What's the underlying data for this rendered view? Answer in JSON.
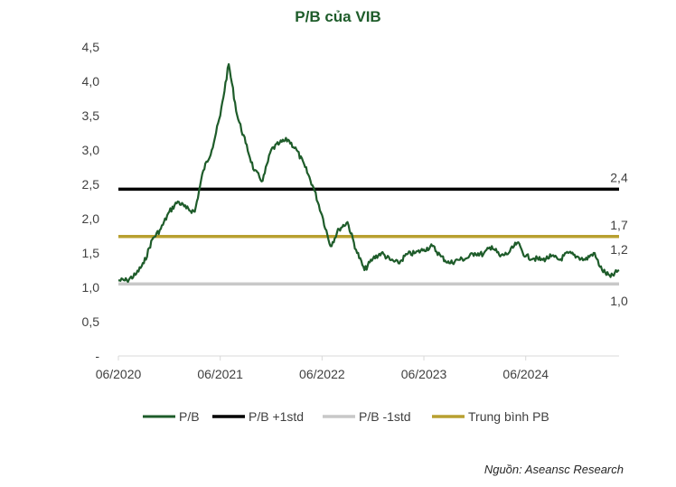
{
  "source": "Nguồn: Aseansc Research",
  "chart_data": {
    "type": "line",
    "title": "P/B của VIB",
    "xlabel": "",
    "ylabel": "",
    "x_ticks": [
      "06/2020",
      "06/2021",
      "06/2022",
      "06/2023",
      "06/2024"
    ],
    "y_ticks": [
      "-",
      "0,5",
      "1,0",
      "1,5",
      "2,0",
      "2,5",
      "3,0",
      "3,5",
      "4,0",
      "4,5"
    ],
    "ylim": [
      0,
      4.5
    ],
    "x_range": [
      "2020-06",
      "2025-05"
    ],
    "grid": false,
    "legend_position": "bottom",
    "colors": {
      "pb": "#1e5c2a",
      "plus1std": "#000000",
      "minus1std": "#c8c8c8",
      "mean": "#b8a030",
      "title": "#1e5c2a"
    },
    "series": [
      {
        "name": "P/B",
        "key": "pb",
        "x": [
          "2020-06",
          "2020-07",
          "2020-08",
          "2020-09",
          "2020-10",
          "2020-11",
          "2020-12",
          "2021-01",
          "2021-02",
          "2021-03",
          "2021-04",
          "2021-05",
          "2021-06",
          "2021-07",
          "2021-08",
          "2021-09",
          "2021-10",
          "2021-11",
          "2021-12",
          "2022-01",
          "2022-02",
          "2022-03",
          "2022-04",
          "2022-05",
          "2022-06",
          "2022-07",
          "2022-08",
          "2022-09",
          "2022-10",
          "2022-11",
          "2022-12",
          "2023-01",
          "2023-02",
          "2023-03",
          "2023-04",
          "2023-05",
          "2023-06",
          "2023-07",
          "2023-08",
          "2023-09",
          "2023-10",
          "2023-11",
          "2023-12",
          "2024-01",
          "2024-02",
          "2024-03",
          "2024-04",
          "2024-05",
          "2024-06",
          "2024-07",
          "2024-08",
          "2024-09",
          "2024-10",
          "2024-11",
          "2024-12",
          "2025-01",
          "2025-02",
          "2025-03",
          "2025-04",
          "2025-05"
        ],
        "values": [
          1.1,
          1.1,
          1.18,
          1.35,
          1.7,
          1.85,
          2.1,
          2.25,
          2.15,
          2.1,
          2.7,
          3.0,
          3.5,
          4.25,
          3.5,
          3.1,
          2.7,
          2.55,
          3.0,
          3.1,
          3.15,
          3.0,
          2.75,
          2.45,
          2.05,
          1.6,
          1.85,
          1.95,
          1.55,
          1.25,
          1.42,
          1.5,
          1.4,
          1.35,
          1.48,
          1.5,
          1.55,
          1.6,
          1.45,
          1.35,
          1.4,
          1.42,
          1.5,
          1.48,
          1.6,
          1.45,
          1.5,
          1.65,
          1.45,
          1.42,
          1.4,
          1.45,
          1.4,
          1.5,
          1.45,
          1.4,
          1.5,
          1.25,
          1.15,
          1.25
        ]
      },
      {
        "name": "P/B +1std",
        "key": "plus1std",
        "value": 2.43,
        "end_label": "2,4"
      },
      {
        "name": "P/B -1std",
        "key": "minus1std",
        "value": 1.05,
        "end_label": "1,0"
      },
      {
        "name": "Trung bình PB",
        "key": "mean",
        "value": 1.74,
        "end_label": "1,7"
      }
    ],
    "last_value_label": "1,2"
  }
}
